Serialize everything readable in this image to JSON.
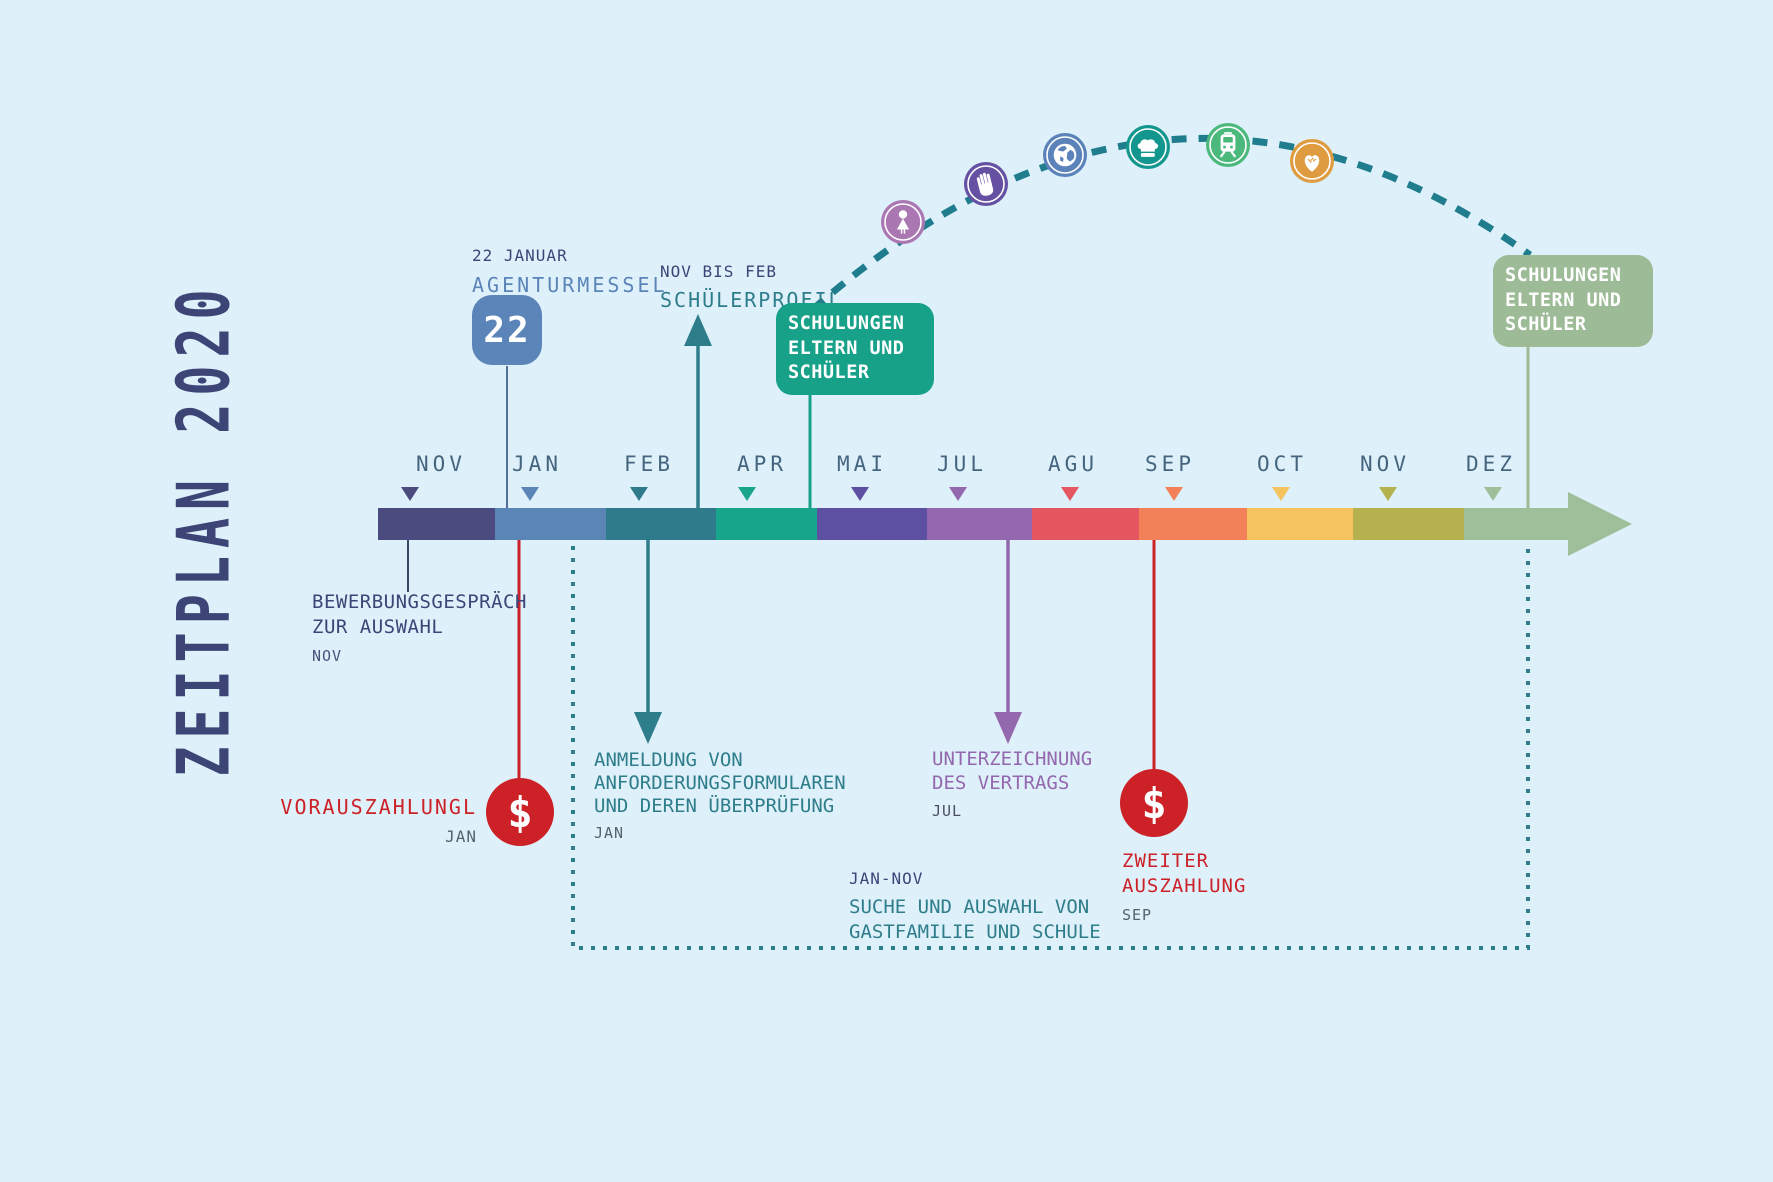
{
  "title": "ZEITPLAN 2020",
  "colors": {
    "background": "#def0fa",
    "title_navy": "#3d4577",
    "timeline_teal": "#2e7d8a",
    "steel_blue": "#5b84b8",
    "accent_red": "#cc2127",
    "accent_purple": "#9468af",
    "green_box": "#16a188",
    "sage_box": "#9cbb96",
    "arc_teal": "#1f7d8e",
    "slate": "#45657f",
    "date_gray": "#56636f"
  },
  "timeline": {
    "months": [
      {
        "label": "NOV",
        "color": "#4b4b7f"
      },
      {
        "label": "JAN",
        "color": "#5b85b7"
      },
      {
        "label": "FEB",
        "color": "#2f7b8b"
      },
      {
        "label": "APR",
        "color": "#17a58b"
      },
      {
        "label": "MAI",
        "color": "#5d4fa1"
      },
      {
        "label": "JUL",
        "color": "#9468af"
      },
      {
        "label": "AGU",
        "color": "#e65661"
      },
      {
        "label": "SEP",
        "color": "#f28159"
      },
      {
        "label": "OCT",
        "color": "#f6c45f"
      },
      {
        "label": "NOV",
        "color": "#b5b14e"
      },
      {
        "label": "DEZ",
        "color": "#9ebf9a"
      }
    ]
  },
  "arc_icons": [
    {
      "name": "person-icon",
      "color": "#aa77b3"
    },
    {
      "name": "hand-icon",
      "color": "#6550a2"
    },
    {
      "name": "globe-icon",
      "color": "#5b83ba"
    },
    {
      "name": "chef-hat-icon",
      "color": "#13968d"
    },
    {
      "name": "train-icon",
      "color": "#4cb97c"
    },
    {
      "name": "handshake-icon",
      "color": "#df9b3f"
    }
  ],
  "annotations": {
    "agenturmesse": {
      "date_label": "22 JANUAR",
      "title": "AGENTURMESSEL",
      "badge": "22"
    },
    "schuelerprofil": {
      "date_label": "NOV BIS FEB",
      "title": "SCHÜLERPROFIL"
    },
    "schulungen_left": {
      "text": "SCHULUNGEN\nELTERN UND\nSCHÜLER"
    },
    "schulungen_right": {
      "text": "SCHULUNGEN\nELTERN UND\nSCHÜLER"
    },
    "bewerbung": {
      "text": "BEWERBUNGSGESPRÄCH\nZUR AUSWAHL",
      "date": "NOV"
    },
    "vorauszahlung": {
      "title": "VORAUSZAHLUNGL",
      "date": "JAN",
      "symbol": "$"
    },
    "anmeldung": {
      "text": "ANMELDUNG VON\nANFORDERUNGSFORMULAREN\nUND DEREN ÜBERPRÜFUNG",
      "date": "JAN"
    },
    "unterzeichnung": {
      "text": "UNTERZEICHNUNG\nDES VERTRAGS",
      "date": "JUL"
    },
    "zweiter_auszahlung": {
      "text": "ZWEITER\nAUSZAHLUNG",
      "date": "SEP",
      "symbol": "$"
    },
    "suche": {
      "date_range": "JAN-NOV",
      "text": "SUCHE UND AUSWAHL VON\nGASTFAMILIE UND SCHULE"
    }
  }
}
